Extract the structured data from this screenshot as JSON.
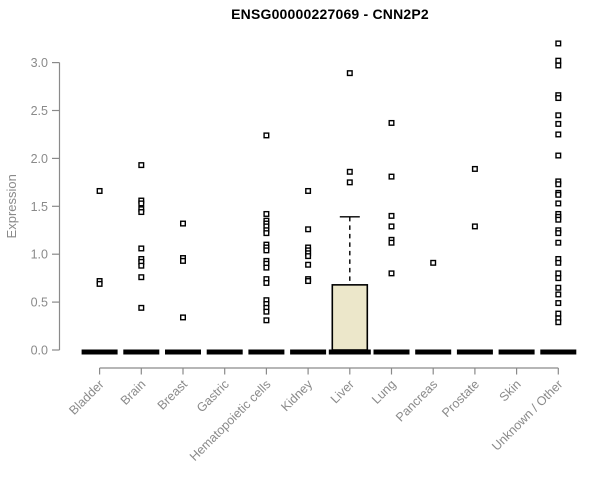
{
  "title": "ENSG00000227069 - CNN2P2",
  "colors": {
    "background": "#FFFFFF",
    "title_text": "#000000",
    "axis": "#8A8A8A",
    "tick_text": "#8A8A8A",
    "box_fill": "#ECE7CA",
    "box_stroke": "#000000",
    "median": "#000000",
    "point_fill": "#FFFFFF",
    "point_stroke": "#000000"
  },
  "chart_data": {
    "type": "boxplot",
    "title": "ENSG00000227069 - CNN2P2",
    "xlabel": "",
    "ylabel": "Expression",
    "ylim": [
      0,
      3.2
    ],
    "yticks": [
      0.0,
      0.5,
      1.0,
      1.5,
      2.0,
      2.5,
      3.0
    ],
    "grid": false,
    "legend": "none",
    "categories": [
      "Bladder",
      "Brain",
      "Breast",
      "Gastric",
      "Hematopoietic cells",
      "Kidney",
      "Liver",
      "Lung",
      "Pancreas",
      "Prostate",
      "Skin",
      "Unknown / Other"
    ],
    "boxes": [
      {
        "category": "Bladder",
        "q1": 0,
        "median": 0,
        "q3": 0,
        "whisker_low": 0,
        "whisker_high": 0
      },
      {
        "category": "Brain",
        "q1": 0,
        "median": 0,
        "q3": 0,
        "whisker_low": 0,
        "whisker_high": 0
      },
      {
        "category": "Breast",
        "q1": 0,
        "median": 0,
        "q3": 0,
        "whisker_low": 0,
        "whisker_high": 0
      },
      {
        "category": "Gastric",
        "q1": 0,
        "median": 0,
        "q3": 0,
        "whisker_low": 0,
        "whisker_high": 0
      },
      {
        "category": "Hematopoietic cells",
        "q1": 0,
        "median": 0,
        "q3": 0,
        "whisker_low": 0,
        "whisker_high": 0
      },
      {
        "category": "Kidney",
        "q1": 0,
        "median": 0,
        "q3": 0,
        "whisker_low": 0,
        "whisker_high": 0
      },
      {
        "category": "Liver",
        "q1": 0,
        "median": 0,
        "q3": 0.68,
        "whisker_low": 0,
        "whisker_high": 1.39
      },
      {
        "category": "Lung",
        "q1": 0,
        "median": 0,
        "q3": 0,
        "whisker_low": 0,
        "whisker_high": 0
      },
      {
        "category": "Pancreas",
        "q1": 0,
        "median": 0,
        "q3": 0,
        "whisker_low": 0,
        "whisker_high": 0
      },
      {
        "category": "Prostate",
        "q1": 0,
        "median": 0,
        "q3": 0,
        "whisker_low": 0,
        "whisker_high": 0
      },
      {
        "category": "Skin",
        "q1": 0,
        "median": 0,
        "q3": 0,
        "whisker_low": 0,
        "whisker_high": 0
      },
      {
        "category": "Unknown / Other",
        "q1": 0,
        "median": 0,
        "q3": 0,
        "whisker_low": 0,
        "whisker_high": 0
      }
    ],
    "points": [
      [
        1.66,
        0.72,
        0.69
      ],
      [
        1.93,
        1.56,
        1.53,
        1.47,
        1.44,
        1.06,
        0.95,
        0.92,
        0.88,
        0.76,
        0.44
      ],
      [
        1.32,
        0.96,
        0.93,
        0.34
      ],
      [],
      [
        2.24,
        1.42,
        1.35,
        1.32,
        1.29,
        1.25,
        1.22,
        1.1,
        1.07,
        1.04,
        0.93,
        0.9,
        0.86,
        0.74,
        0.7,
        0.52,
        0.48,
        0.44,
        0.4,
        0.31
      ],
      [
        1.66,
        1.26,
        1.07,
        1.04,
        1.01,
        0.98,
        0.89,
        0.74,
        0.72
      ],
      [
        2.89,
        1.86,
        1.75
      ],
      [
        2.37,
        1.81,
        1.4,
        1.29,
        1.15,
        1.12,
        0.8
      ],
      [
        0.91
      ],
      [
        1.89,
        1.29
      ],
      [],
      [
        3.2,
        3.02,
        2.97,
        2.66,
        2.63,
        2.45,
        2.36,
        2.25,
        2.03,
        1.76,
        1.73,
        1.64,
        1.62,
        1.53,
        1.42,
        1.39,
        1.36,
        1.25,
        1.22,
        1.12,
        0.95,
        0.91,
        0.8,
        0.75,
        0.65,
        0.58,
        0.49,
        0.38,
        0.33,
        0.29
      ]
    ]
  }
}
